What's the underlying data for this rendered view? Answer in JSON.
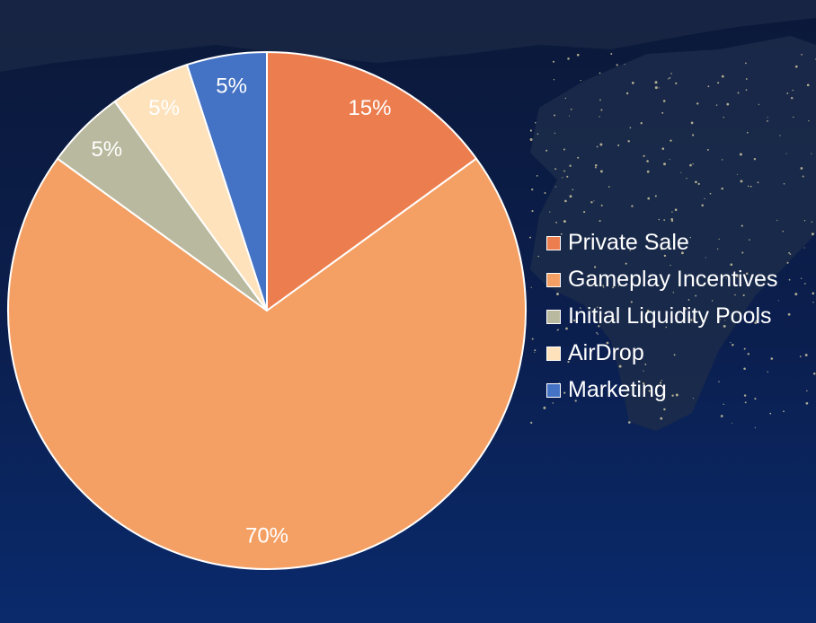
{
  "colors": {
    "background_top": "#0b1838",
    "background_bottom": "#0a2a6c"
  },
  "chart_data": {
    "type": "pie",
    "title": "",
    "start_angle_deg": 0,
    "direction": "clockwise",
    "legend_position": "right",
    "slices": [
      {
        "label": "Private Sale",
        "value": 15,
        "display": "15%",
        "color": "#ec7d4e"
      },
      {
        "label": "Gameplay Incentives",
        "value": 70,
        "display": "70%",
        "color": "#f4a064"
      },
      {
        "label": "Initial Liquidity Pools",
        "value": 5,
        "display": "5%",
        "color": "#b9b99f"
      },
      {
        "label": "AirDrop",
        "value": 5,
        "display": "5%",
        "color": "#fde2bc"
      },
      {
        "label": "Marketing",
        "value": 5,
        "display": "5%",
        "color": "#4472c4"
      }
    ]
  }
}
